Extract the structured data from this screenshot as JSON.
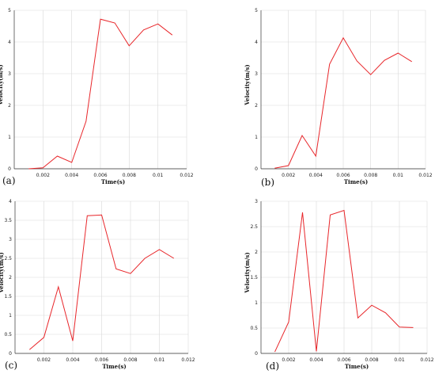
{
  "figure": {
    "line_color": "#e8262a",
    "grid_color": "#d9d9d9"
  },
  "chart_data": [
    {
      "type": "line",
      "panel": "(a)",
      "xlabel": "Time(s)",
      "ylabel": "Velocity(m/s)",
      "xlim": [
        0,
        0.012
      ],
      "ylim": [
        0,
        5
      ],
      "xticks": [
        "0.002",
        "0.004",
        "0.006",
        "0.008",
        "0.01",
        "0.012"
      ],
      "yticks": [
        "0",
        "1",
        "2",
        "3",
        "4",
        "5"
      ],
      "grid": true,
      "x": [
        0.001,
        0.002,
        0.003,
        0.004,
        0.005,
        0.006,
        0.007,
        0.008,
        0.009,
        0.01,
        0.011
      ],
      "y": [
        0.0,
        0.03,
        0.4,
        0.2,
        1.5,
        4.72,
        4.6,
        3.88,
        4.38,
        4.57,
        4.22
      ]
    },
    {
      "type": "line",
      "panel": "(b)",
      "xlabel": "Time(s)",
      "ylabel": "Velocity(m/s)",
      "xlim": [
        0,
        0.012
      ],
      "ylim": [
        0,
        5
      ],
      "xticks": [
        "0.002",
        "0.004",
        "0.006",
        "0.008",
        "0.01",
        "0.012"
      ],
      "yticks": [
        "0",
        "1",
        "2",
        "3",
        "4",
        "5"
      ],
      "grid": true,
      "x": [
        0.001,
        0.002,
        0.003,
        0.004,
        0.005,
        0.006,
        0.007,
        0.008,
        0.009,
        0.01,
        0.011
      ],
      "y": [
        0.02,
        0.1,
        1.05,
        0.4,
        3.3,
        4.13,
        3.4,
        2.97,
        3.42,
        3.65,
        3.38
      ]
    },
    {
      "type": "line",
      "panel": "(c)",
      "xlabel": "Time(s)",
      "ylabel": "Velocity(m/s)",
      "xlim": [
        0,
        0.012
      ],
      "ylim": [
        0,
        4
      ],
      "xticks": [
        "0.002",
        "0.004",
        "0.006",
        "0.008",
        "0.01",
        "0.012"
      ],
      "yticks": [
        "0",
        "0.5",
        "1",
        "1.5",
        "2",
        "2.5",
        "3",
        "3.5",
        "4"
      ],
      "grid": true,
      "x": [
        0.001,
        0.002,
        0.003,
        0.004,
        0.005,
        0.006,
        0.007,
        0.008,
        0.009,
        0.01,
        0.011
      ],
      "y": [
        0.1,
        0.42,
        1.75,
        0.33,
        3.62,
        3.64,
        2.22,
        2.1,
        2.5,
        2.73,
        2.5
      ]
    },
    {
      "type": "line",
      "panel": "(d)",
      "xlabel": "Time(s)",
      "ylabel": "Velocity(m/s)",
      "xlim": [
        0,
        0.012
      ],
      "ylim": [
        0,
        3
      ],
      "xticks": [
        "0.002",
        "0.004",
        "0.006",
        "0.008",
        "0.01",
        "0.012"
      ],
      "yticks": [
        "0",
        "0.5",
        "1",
        "1.5",
        "2",
        "2.5",
        "3"
      ],
      "grid": true,
      "x": [
        0.001,
        0.002,
        0.003,
        0.004,
        0.005,
        0.006,
        0.007,
        0.008,
        0.009,
        0.01,
        0.011
      ],
      "y": [
        0.03,
        0.62,
        2.78,
        0.04,
        2.73,
        2.82,
        0.7,
        0.95,
        0.8,
        0.52,
        0.51
      ]
    }
  ]
}
